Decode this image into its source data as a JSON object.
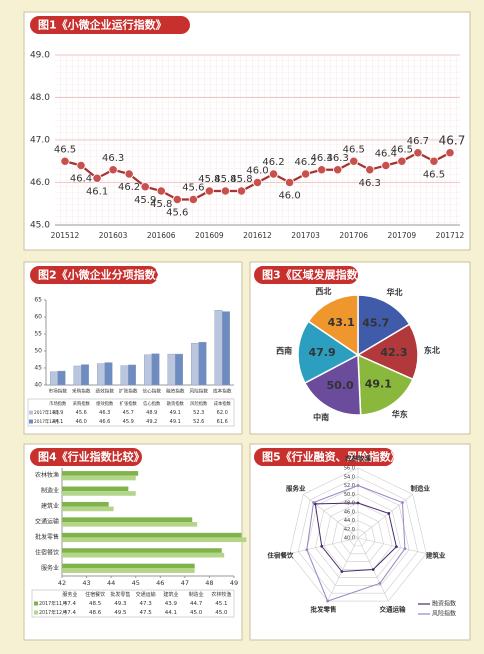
{
  "chart_data": [
    {
      "type": "line",
      "title": "图1《小微企业运行指数》",
      "categories": [
        "201512",
        null,
        null,
        "201603",
        null,
        null,
        "201606",
        null,
        null,
        "201609",
        null,
        null,
        "201612",
        null,
        null,
        "201703",
        null,
        null,
        "201706",
        null,
        null,
        "201709",
        null,
        null,
        "201712"
      ],
      "values": [
        46.5,
        46.4,
        46.1,
        46.3,
        46.2,
        45.9,
        45.8,
        45.6,
        45.6,
        45.8,
        45.8,
        45.8,
        46.0,
        46.2,
        46.0,
        46.2,
        46.3,
        46.3,
        46.5,
        46.3,
        46.4,
        46.5,
        46.7,
        46.5,
        46.7
      ],
      "value_labels": [
        "46.5",
        "46.4",
        "46.1",
        "46.3",
        "46.2",
        "45.9",
        "45.8",
        "45.6",
        "45.6",
        "45.8",
        "45.8",
        "45.8",
        "46.0",
        "46.2",
        "46.0",
        "46.2",
        "46.3",
        "46.3",
        "46.5",
        "46.3",
        "46.4",
        "46.5",
        "46.7",
        "46.5",
        "46.7"
      ],
      "color": "#a8322f",
      "ylim": [
        45,
        49
      ],
      "yticks": [
        {
          "value": 45,
          "label": "45.0"
        },
        {
          "value": 46,
          "label": "46.0"
        },
        {
          "value": 47,
          "label": "47.0"
        },
        {
          "value": 48,
          "label": "48.0"
        },
        {
          "value": 49,
          "label": "49.0"
        }
      ],
      "grid": true
    },
    {
      "type": "bar",
      "title": "图2《小微企业分项指数》",
      "categories": [
        "市场指数",
        "采购指数",
        "绩效指数",
        "扩张指数",
        "信心指数",
        "融资指数",
        "风险指数",
        "成本指数"
      ],
      "series": [
        {
          "name": "2017年11月",
          "color": "#b9c6de",
          "values": [
            43.9,
            45.6,
            46.3,
            45.7,
            48.9,
            49.1,
            52.3,
            62.0
          ],
          "value_labels": [
            "43.9",
            "45.6",
            "46.3",
            "45.7",
            "48.9",
            "49.1",
            "52.3",
            "62.0"
          ]
        },
        {
          "name": "2017年12月",
          "color": "#6f8cc0",
          "values": [
            44.1,
            46.0,
            46.6,
            45.9,
            49.2,
            49.1,
            52.6,
            61.6
          ],
          "value_labels": [
            "44.1",
            "46.0",
            "46.6",
            "45.9",
            "49.2",
            "49.1",
            "52.6",
            "61.6"
          ]
        }
      ],
      "ylim": [
        40,
        65
      ],
      "yticks": [
        40,
        45,
        50,
        55,
        60,
        65
      ]
    },
    {
      "type": "pie",
      "title": "图3《区域发展指数》",
      "categories": [
        "华北",
        "东北",
        "华东",
        "中南",
        "西南",
        "西北"
      ],
      "values": [
        45.7,
        42.3,
        49.1,
        50.0,
        47.9,
        43.1
      ],
      "value_labels": [
        "45.7",
        "42.3",
        "49.1",
        "50.0",
        "47.9",
        "43.1"
      ],
      "colors": [
        "#3f5ba9",
        "#b2393b",
        "#8ab83d",
        "#6b4b9b",
        "#2c9fc0",
        "#ef962c"
      ]
    },
    {
      "type": "barh",
      "title": "图4《行业指数比较》",
      "categories": [
        "服务业",
        "住宿餐饮",
        "批发零售",
        "交通运输",
        "建筑业",
        "制造业",
        "农林牧渔"
      ],
      "series": [
        {
          "name": "2017年11月",
          "color": "#7fb34c",
          "values": [
            47.4,
            48.5,
            49.3,
            47.3,
            43.9,
            44.7,
            45.1
          ],
          "value_labels": [
            "47.4",
            "48.5",
            "49.3",
            "47.3",
            "43.9",
            "44.7",
            "45.1"
          ]
        },
        {
          "name": "2017年12月",
          "color": "#b2d588",
          "values": [
            47.4,
            48.6,
            49.5,
            47.5,
            44.1,
            45.0,
            45.0
          ],
          "value_labels": [
            "47.4",
            "48.6",
            "49.5",
            "47.5",
            "44.1",
            "45.0",
            "45.0"
          ]
        }
      ],
      "xlim": [
        42,
        49
      ],
      "xticks": [
        42,
        43,
        44,
        45,
        46,
        47,
        48,
        49
      ]
    },
    {
      "type": "radar",
      "title": "图5《行业融资、风险指数》",
      "categories": [
        "农林牧渔",
        "制造业",
        "建筑业",
        "交通运输",
        "批发零售",
        "住宿餐饮",
        "服务业"
      ],
      "series": [
        {
          "name": "融资指数",
          "color": "#4a2c6a",
          "values": [
            48.0,
            49.0,
            49.0,
            48.0,
            48.5,
            48.5,
            52.5
          ]
        },
        {
          "name": "风险指数",
          "color": "#9c84c2",
          "values": [
            52.0,
            53.0,
            51.0,
            51.5,
            56.0,
            52.0,
            53.0
          ]
        }
      ],
      "rlim": [
        40,
        56
      ],
      "rticks": [
        {
          "value": 40,
          "label": "40.0"
        },
        {
          "value": 42,
          "label": "42.0"
        },
        {
          "value": 44,
          "label": "44.0"
        },
        {
          "value": 46,
          "label": "46.0"
        },
        {
          "value": 48,
          "label": "48.0"
        },
        {
          "value": 50,
          "label": "50.0"
        },
        {
          "value": 52,
          "label": "52.0"
        },
        {
          "value": 54,
          "label": "54.0"
        },
        {
          "value": 56,
          "label": "56.0"
        }
      ]
    }
  ]
}
